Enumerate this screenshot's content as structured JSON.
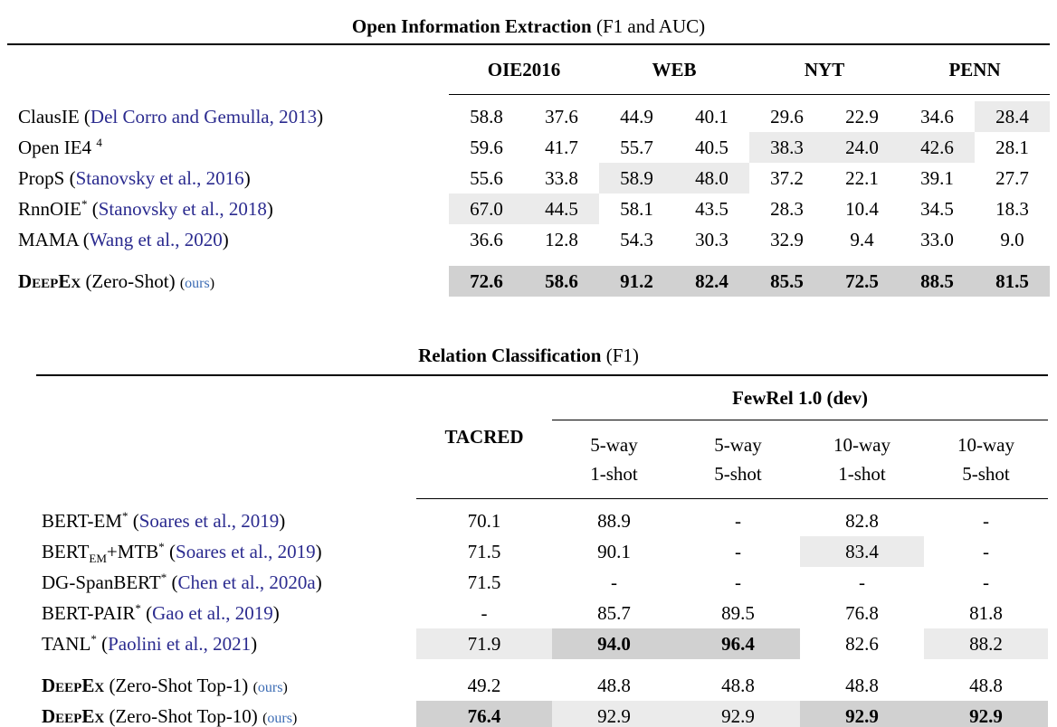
{
  "colors": {
    "cite": "#2b2b8f",
    "ours": "#3c6cb4",
    "hl_light": "#ebebeb",
    "hl_dark": "#d1d1d1"
  },
  "table1": {
    "title_bold": "Open Information Extraction",
    "title_rest": " (F1 and AUC)",
    "col_groups": [
      "OIE2016",
      "WEB",
      "NYT",
      "PENN"
    ],
    "rows": [
      {
        "label": [
          {
            "t": "ClausIE ("
          },
          {
            "t": "Del Corro and Gemulla, 2013",
            "s": "cite"
          },
          {
            "t": ")"
          }
        ],
        "cells": [
          {
            "v": "58.8"
          },
          {
            "v": "37.6"
          },
          {
            "v": "44.9"
          },
          {
            "v": "40.1"
          },
          {
            "v": "29.6"
          },
          {
            "v": "22.9"
          },
          {
            "v": "34.6"
          },
          {
            "v": "28.4",
            "hl": "light"
          }
        ]
      },
      {
        "label": [
          {
            "t": "Open IE4 "
          },
          {
            "t": "4",
            "s": "sup"
          }
        ],
        "cells": [
          {
            "v": "59.6"
          },
          {
            "v": "41.7"
          },
          {
            "v": "55.7"
          },
          {
            "v": "40.5"
          },
          {
            "v": "38.3",
            "hl": "light"
          },
          {
            "v": "24.0",
            "hl": "light"
          },
          {
            "v": "42.6",
            "hl": "light"
          },
          {
            "v": "28.1"
          }
        ]
      },
      {
        "label": [
          {
            "t": "PropS ("
          },
          {
            "t": "Stanovsky et al., 2016",
            "s": "cite"
          },
          {
            "t": ")"
          }
        ],
        "cells": [
          {
            "v": "55.6"
          },
          {
            "v": "33.8"
          },
          {
            "v": "58.9",
            "hl": "light"
          },
          {
            "v": "48.0",
            "hl": "light"
          },
          {
            "v": "37.2"
          },
          {
            "v": "22.1"
          },
          {
            "v": "39.1"
          },
          {
            "v": "27.7"
          }
        ]
      },
      {
        "label": [
          {
            "t": "RnnOIE"
          },
          {
            "t": "*",
            "s": "sup"
          },
          {
            "t": " ("
          },
          {
            "t": "Stanovsky et al., 2018",
            "s": "cite"
          },
          {
            "t": ")"
          }
        ],
        "cells": [
          {
            "v": "67.0",
            "hl": "light"
          },
          {
            "v": "44.5",
            "hl": "light"
          },
          {
            "v": "58.1"
          },
          {
            "v": "43.5"
          },
          {
            "v": "28.3"
          },
          {
            "v": "10.4"
          },
          {
            "v": "34.5"
          },
          {
            "v": "18.3"
          }
        ]
      },
      {
        "label": [
          {
            "t": "MAMA ("
          },
          {
            "t": "Wang et al., 2020",
            "s": "cite"
          },
          {
            "t": ")"
          }
        ],
        "cells": [
          {
            "v": "36.6"
          },
          {
            "v": "12.8"
          },
          {
            "v": "54.3"
          },
          {
            "v": "30.3"
          },
          {
            "v": "32.9"
          },
          {
            "v": "9.4"
          },
          {
            "v": "33.0"
          },
          {
            "v": "9.0"
          }
        ]
      },
      {
        "gap_before": true,
        "label": [
          {
            "t": "DeepEx",
            "s": "sc"
          },
          {
            "t": " (Zero-Shot) "
          },
          {
            "t": "(",
            "s": "small"
          },
          {
            "t": "ours",
            "s": "ours"
          },
          {
            "t": ")",
            "s": "small"
          }
        ],
        "cells": [
          {
            "v": "72.6",
            "hl": "dark",
            "b": true
          },
          {
            "v": "58.6",
            "hl": "dark",
            "b": true
          },
          {
            "v": "91.2",
            "hl": "dark",
            "b": true
          },
          {
            "v": "82.4",
            "hl": "dark",
            "b": true
          },
          {
            "v": "85.5",
            "hl": "dark",
            "b": true
          },
          {
            "v": "72.5",
            "hl": "dark",
            "b": true
          },
          {
            "v": "88.5",
            "hl": "dark",
            "b": true
          },
          {
            "v": "81.5",
            "hl": "dark",
            "b": true
          }
        ]
      }
    ]
  },
  "table2": {
    "title_bold": "Relation Classification",
    "title_rest": " (F1)",
    "col1_header": "TACRED",
    "group_header": "FewRel 1.0 (dev)",
    "sub_headers": [
      [
        "5-way",
        "1-shot"
      ],
      [
        "5-way",
        "5-shot"
      ],
      [
        "10-way",
        "1-shot"
      ],
      [
        "10-way",
        "5-shot"
      ]
    ],
    "rows": [
      {
        "label": [
          {
            "t": "BERT-EM"
          },
          {
            "t": "*",
            "s": "sup"
          },
          {
            "t": " ("
          },
          {
            "t": "Soares et al., 2019",
            "s": "cite"
          },
          {
            "t": ")"
          }
        ],
        "cells": [
          {
            "v": "70.1"
          },
          {
            "v": "88.9"
          },
          {
            "v": "-"
          },
          {
            "v": "82.8"
          },
          {
            "v": "-"
          }
        ]
      },
      {
        "label": [
          {
            "t": "BERT"
          },
          {
            "t": "EM",
            "s": "sub"
          },
          {
            "t": "+MTB"
          },
          {
            "t": "*",
            "s": "sup"
          },
          {
            "t": " ("
          },
          {
            "t": "Soares et al., 2019",
            "s": "cite"
          },
          {
            "t": ")"
          }
        ],
        "cells": [
          {
            "v": "71.5"
          },
          {
            "v": "90.1"
          },
          {
            "v": "-"
          },
          {
            "v": "83.4",
            "hl": "light"
          },
          {
            "v": "-"
          }
        ]
      },
      {
        "label": [
          {
            "t": "DG-SpanBERT"
          },
          {
            "t": "*",
            "s": "sup"
          },
          {
            "t": " ("
          },
          {
            "t": "Chen et al., 2020a",
            "s": "cite"
          },
          {
            "t": ")"
          }
        ],
        "cells": [
          {
            "v": "71.5"
          },
          {
            "v": "-"
          },
          {
            "v": "-"
          },
          {
            "v": "-"
          },
          {
            "v": "-"
          }
        ]
      },
      {
        "label": [
          {
            "t": "BERT-PAIR"
          },
          {
            "t": "*",
            "s": "sup"
          },
          {
            "t": " ("
          },
          {
            "t": "Gao et al., 2019",
            "s": "cite"
          },
          {
            "t": ")"
          }
        ],
        "cells": [
          {
            "v": "-"
          },
          {
            "v": "85.7"
          },
          {
            "v": "89.5"
          },
          {
            "v": "76.8"
          },
          {
            "v": "81.8"
          }
        ]
      },
      {
        "label": [
          {
            "t": "TANL"
          },
          {
            "t": "*",
            "s": "sup"
          },
          {
            "t": " ("
          },
          {
            "t": "Paolini et al., 2021",
            "s": "cite"
          },
          {
            "t": ")"
          }
        ],
        "cells": [
          {
            "v": "71.9",
            "hl": "light"
          },
          {
            "v": "94.0",
            "hl": "dark",
            "b": true
          },
          {
            "v": "96.4",
            "hl": "dark",
            "b": true
          },
          {
            "v": "82.6"
          },
          {
            "v": "88.2",
            "hl": "light"
          }
        ]
      },
      {
        "gap_before": true,
        "label": [
          {
            "t": "DeepEx",
            "s": "sc"
          },
          {
            "t": " (Zero-Shot Top-1) "
          },
          {
            "t": "(",
            "s": "small"
          },
          {
            "t": "ours",
            "s": "ours"
          },
          {
            "t": ")",
            "s": "small"
          }
        ],
        "cells": [
          {
            "v": "49.2"
          },
          {
            "v": "48.8"
          },
          {
            "v": "48.8"
          },
          {
            "v": "48.8"
          },
          {
            "v": "48.8"
          }
        ]
      },
      {
        "label": [
          {
            "t": "DeepEx",
            "s": "sc"
          },
          {
            "t": " (Zero-Shot Top-10) "
          },
          {
            "t": "(",
            "s": "small"
          },
          {
            "t": "ours",
            "s": "ours"
          },
          {
            "t": ")",
            "s": "small"
          }
        ],
        "cells": [
          {
            "v": "76.4",
            "hl": "dark",
            "b": true
          },
          {
            "v": "92.9",
            "hl": "light"
          },
          {
            "v": "92.9",
            "hl": "light"
          },
          {
            "v": "92.9",
            "hl": "dark",
            "b": true
          },
          {
            "v": "92.9",
            "hl": "dark",
            "b": true
          }
        ]
      }
    ]
  }
}
